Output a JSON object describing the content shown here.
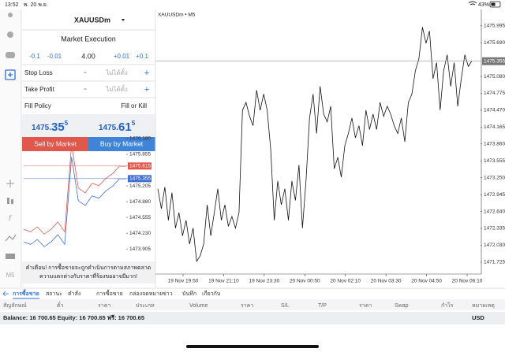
{
  "status_bar": {
    "time": "13:52",
    "date": "พ. 20 พ.ย.",
    "battery": "43%"
  },
  "sidebar": {
    "timeframe": "M5"
  },
  "order_panel": {
    "symbol": "XAUUSDm",
    "execution": "Market Execution",
    "volume_buttons": [
      "-0.1",
      "-0.01",
      "4.00",
      "+0.01",
      "+0.1"
    ],
    "stop_loss": {
      "label": "Stop Loss",
      "minus": "-",
      "value": "ไม่ได้ตั้ง",
      "plus": "+"
    },
    "take_profit": {
      "label": "Take Profit",
      "minus": "-",
      "value": "ไม่ได้ตั้ง",
      "plus": "+"
    },
    "fill_policy": {
      "label": "Fill Policy",
      "value": "Fill or Kill"
    },
    "bid": {
      "main": "1475.",
      "big": "35",
      "small": "5"
    },
    "ask": {
      "main": "1475.",
      "big": "61",
      "small": "5"
    },
    "sell_button": "Sell by Market",
    "buy_button": "Buy by Market",
    "warning": [
      "คำเตือน! การซื้อขายจะถูกดำเนินการตามสภาพตลาด",
      "ความแตกต่างกับราคาที่ร้องขออาจมีมาก!"
    ]
  },
  "mini_chart": {
    "type": "line",
    "ylim": [
      1473.68,
      1476.31
    ],
    "yticks": [
      {
        "value": 1476.18,
        "label": "1476.180"
      },
      1475.855,
      1475.205,
      {
        "value": 1474.88,
        "label": "1474.880"
      },
      1474.555,
      {
        "value": 1474.23,
        "label": "1474.230"
      },
      1473.905
    ],
    "series": [
      {
        "name": "Ask",
        "color": "#e0574b",
        "values": [
          1474.31,
          1474.26,
          1474.36,
          1474.21,
          1474.31,
          1474.46,
          1474.26,
          1476.06,
          1475.16,
          1475.06,
          1475.26,
          1475.21,
          1475.36,
          1475.46,
          1475.61,
          1475.61
        ]
      },
      {
        "name": "Bid",
        "color": "#3f6fd0",
        "values": [
          1474.05,
          1474.0,
          1474.1,
          1473.95,
          1474.05,
          1474.2,
          1474.0,
          1475.8,
          1474.9,
          1474.8,
          1475.0,
          1474.95,
          1475.1,
          1475.2,
          1475.35,
          1475.35
        ]
      }
    ],
    "ask_tag": 1475.615,
    "bid_tag": 1475.355
  },
  "chart_data": {
    "type": "line",
    "title": "XAUUSDm • M5",
    "ylim": [
      1471.51,
      1476.29
    ],
    "yticks": [
      1475.995,
      {
        "value": 1475.69,
        "label": "1475.690"
      },
      {
        "value": 1475.08,
        "label": "1475.080"
      },
      1474.775,
      {
        "value": 1474.47,
        "label": "1474.470"
      },
      1474.165,
      {
        "value": 1473.86,
        "label": "1473.860"
      },
      1473.555,
      {
        "value": 1473.25,
        "label": "1473.250"
      },
      1472.945,
      {
        "value": 1472.64,
        "label": "1472.640"
      },
      1472.335,
      {
        "value": 1472.03,
        "label": "1472.030"
      },
      1471.725
    ],
    "xtick_labels": [
      "19 Nov 19:50",
      "19 Nov 21:10",
      "19 Nov 23:30",
      "20 Nov 00:50",
      "20 Nov 02:10",
      "20 Nov 03:30",
      "20 Nov 04:50",
      "20 Nov 06:10"
    ],
    "current_price": 1475.355,
    "series": [
      {
        "name": "XAUUSDm",
        "color": "#111111",
        "values": [
          1473.05,
          1472.69,
          1473.08,
          1472.48,
          1472.98,
          1472.34,
          1472.62,
          1472.2,
          1472.48,
          1472.05,
          1472.34,
          1471.74,
          1471.84,
          1472.05,
          1472.76,
          1472.2,
          1472.62,
          1473.05,
          1472.48,
          1472.76,
          1472.37,
          1472.55,
          1472.34,
          1472.62,
          1474.47,
          1474.61,
          1474.36,
          1474.19,
          1474.83,
          1474.47,
          1474.76,
          1474.47,
          1473.76,
          1472.48,
          1473.19,
          1472.76,
          1473.05,
          1472.48,
          1473.19,
          1472.84,
          1473.48,
          1472.34,
          1473.19,
          1474.33,
          1474.76,
          1474.05,
          1474.9,
          1474.4,
          1474.26,
          1474.54,
          1473.41,
          1473.62,
          1473.26,
          1473.83,
          1474.05,
          1474.33,
          1473.97,
          1474.19,
          1473.83,
          1474.47,
          1474.12,
          1474.4,
          1474.12,
          1474.61,
          1474.36,
          1474.54,
          1474.4,
          1474.19,
          1474.05,
          1474.33,
          1473.9,
          1474.61,
          1474.76,
          1475.18,
          1475.4,
          1475.97,
          1475.68,
          1475.9,
          1475.04,
          1475.33,
          1474.47,
          1475.18,
          1475.47,
          1474.9,
          1475.33,
          1474.54,
          1475.04,
          1475.47,
          1475.26,
          1475.36
        ]
      }
    ]
  },
  "bottom_panel": {
    "tabs": [
      "การซื้อขาย",
      "สถานะ",
      "คำสั่ง",
      "การซื้อขาย",
      "กล่องจดหมาย",
      "ข่าว",
      "บันทึก",
      "เกี่ยวกับ"
    ],
    "columns": [
      "สัญลักษณ์",
      "ตั๋ว",
      "ราคา",
      "ประเภท",
      "Volume",
      "ราคา",
      "S/L",
      "T/P",
      "ราคา",
      "Swap",
      "กำไร",
      "หมายเหตุ"
    ],
    "balance": "Balance: 16 700.65 Equity: 16 700.65 ฟรี: 16 700.65",
    "currency": "USD"
  }
}
